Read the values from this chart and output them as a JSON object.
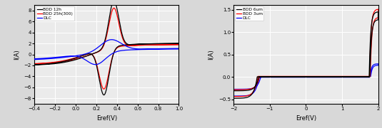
{
  "plot1": {
    "xlabel": "Eref(V)",
    "ylabel": "I(A)",
    "xlim": [
      -0.4,
      1.0
    ],
    "ylim": [
      -9,
      9
    ],
    "xticks": [
      -0.4,
      -0.2,
      0.0,
      0.2,
      0.4,
      0.6,
      0.8,
      1.0
    ],
    "yticks": [
      -8,
      -6,
      -4,
      -2,
      0,
      2,
      4,
      6,
      8
    ],
    "legend": [
      "BDD 12h",
      "BDD 25h(300)",
      "DLC"
    ],
    "colors": [
      "black",
      "red",
      "blue"
    ]
  },
  "plot2": {
    "xlabel": "Eref(V)",
    "ylabel": "I(A)",
    "xlim": [
      -2.0,
      2.0
    ],
    "ylim": [
      -0.6,
      1.6
    ],
    "xticks": [
      -2,
      -1,
      0,
      1,
      2
    ],
    "yticks": [
      -0.5,
      0.0,
      0.5,
      1.0,
      1.5
    ],
    "legend": [
      "BDD 6um",
      "BDD 3um",
      "DLC"
    ],
    "colors": [
      "black",
      "red",
      "blue"
    ]
  },
  "bg_color": "#ebebeb",
  "grid_color": "white",
  "linewidth": 0.9
}
